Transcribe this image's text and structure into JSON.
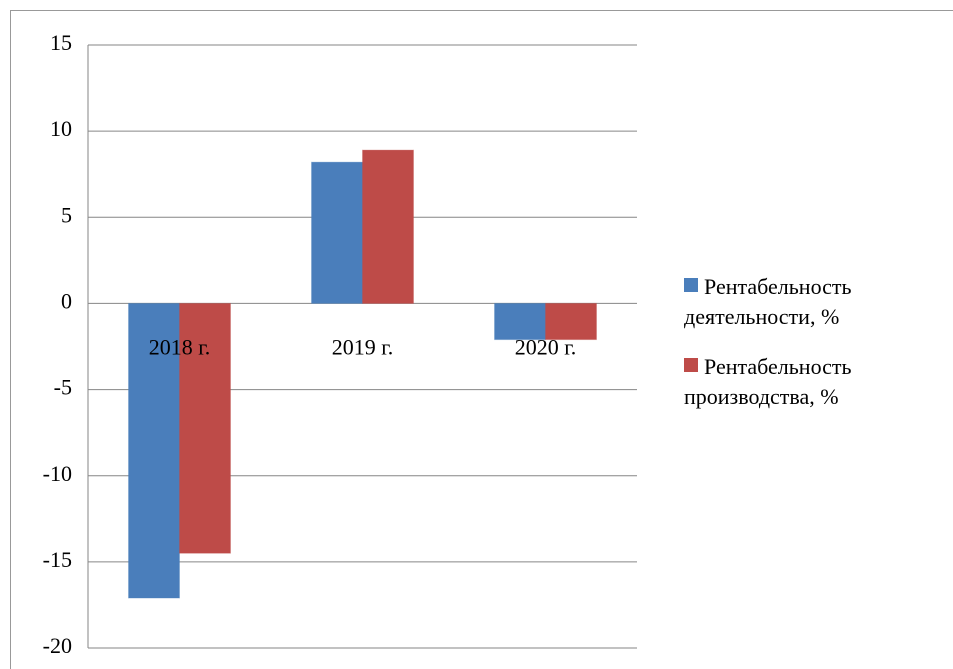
{
  "chart_data": {
    "type": "bar",
    "categories": [
      "2018 г.",
      "2019 г.",
      "2020 г."
    ],
    "series": [
      {
        "name": "Рентабельность деятельности, %",
        "color": "#4a7ebb",
        "values": [
          -17.1,
          8.2,
          -2.1
        ]
      },
      {
        "name": "Рентабельность производства, %",
        "color": "#be4b48",
        "values": [
          -14.5,
          8.9,
          -2.1
        ]
      }
    ],
    "ylim": [
      -20,
      15
    ],
    "yticks": [
      -20,
      -15,
      -10,
      -5,
      0,
      5,
      10,
      15
    ],
    "grid": true,
    "legend": "right"
  }
}
